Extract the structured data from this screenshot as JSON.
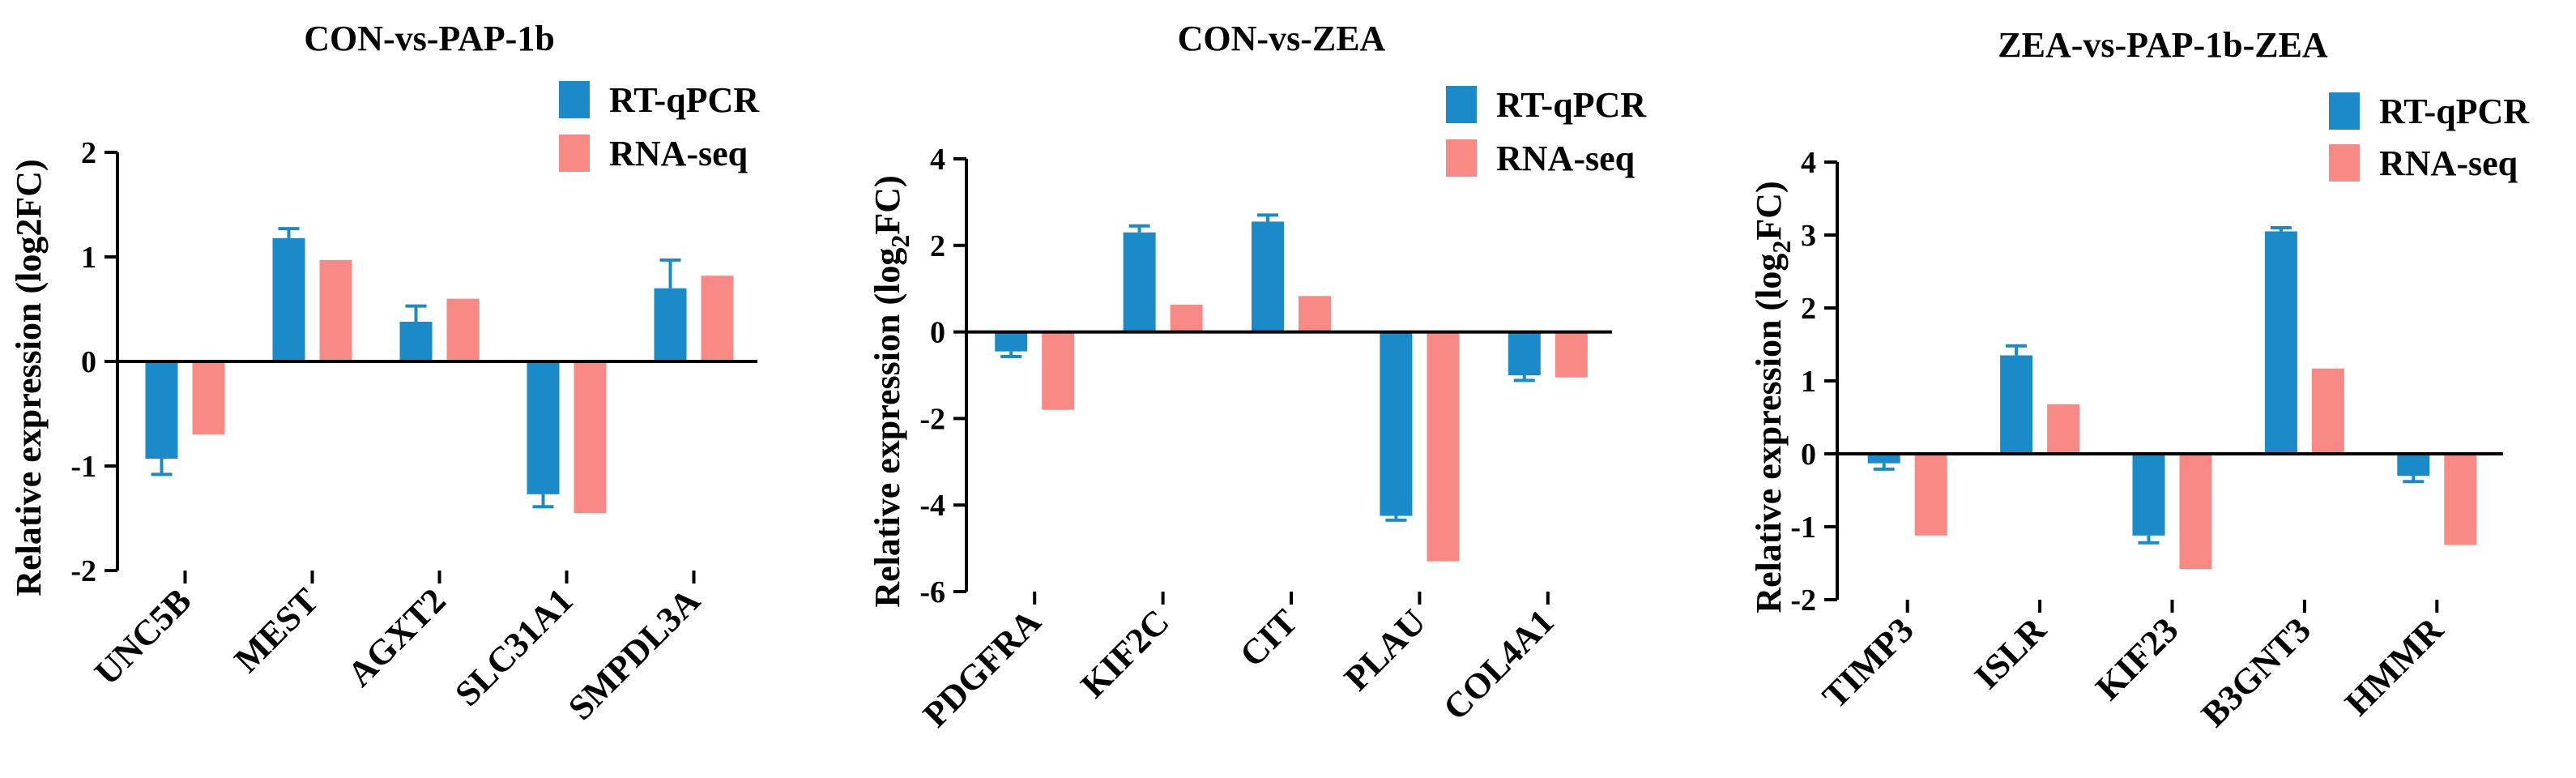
{
  "colors": {
    "qpcr": "#1b8ac8",
    "rnaseq": "#f98984",
    "axis": "#000000"
  },
  "chart_data": [
    {
      "type": "bar",
      "title": "CON-vs-PAP-1b",
      "ylabel": "Relative expression (log2FC)",
      "ylabel_sub": false,
      "ylim": [
        -2,
        2
      ],
      "yticks": [
        -2,
        -1,
        0,
        1,
        2
      ],
      "ytick_labels": [
        "-2",
        "-1",
        "0",
        "1",
        "2"
      ],
      "categories": [
        "UNC5B",
        "MEST",
        "AGXT2",
        "SLC31A1",
        "SMPDL3A"
      ],
      "series": [
        {
          "name": "RT-qPCR",
          "values": [
            -0.93,
            1.18,
            0.38,
            -1.27,
            0.7
          ],
          "errors": [
            0.15,
            0.09,
            0.15,
            0.12,
            0.27
          ]
        },
        {
          "name": "RNA-seq",
          "values": [
            -0.7,
            0.97,
            0.6,
            -1.45,
            0.82
          ]
        }
      ]
    },
    {
      "type": "bar",
      "title": "CON-vs-ZEA",
      "ylabel": "Relative expression (log2FC)",
      "ylabel_sub": true,
      "ylim": [
        -6,
        4
      ],
      "yticks": [
        -6,
        -4,
        -2,
        0,
        2,
        4
      ],
      "ytick_labels": [
        "-6",
        "-4",
        "-2",
        "0",
        "2",
        "4"
      ],
      "categories": [
        "PDGFRA",
        "KIF2C",
        "CIT",
        "PLAU",
        "COL4A1"
      ],
      "series": [
        {
          "name": "RT-qPCR",
          "values": [
            -0.45,
            2.3,
            2.55,
            -4.25,
            -1.0
          ],
          "errors": [
            0.12,
            0.15,
            0.15,
            0.1,
            0.12
          ]
        },
        {
          "name": "RNA-seq",
          "values": [
            -1.8,
            0.63,
            0.83,
            -5.3,
            -1.05
          ]
        }
      ]
    },
    {
      "type": "bar",
      "title": "ZEA-vs-PAP-1b-ZEA",
      "ylabel": "Relative expression (log2FC)",
      "ylabel_sub": true,
      "ylim": [
        -2,
        4
      ],
      "yticks": [
        -2,
        -1,
        0,
        1,
        2,
        3,
        4
      ],
      "ytick_labels": [
        "-2",
        "-1",
        "0",
        "1",
        "2",
        "3",
        "4"
      ],
      "categories": [
        "TIMP3",
        "ISLR",
        "KIF23",
        "B3GNT3",
        "HMMR"
      ],
      "series": [
        {
          "name": "RT-qPCR",
          "values": [
            -0.13,
            1.35,
            -1.12,
            3.05,
            -0.3
          ],
          "errors": [
            0.08,
            0.13,
            0.1,
            0.05,
            0.08
          ]
        },
        {
          "name": "RNA-seq",
          "values": [
            -1.12,
            0.68,
            -1.58,
            1.17,
            -1.25
          ]
        }
      ]
    }
  ]
}
